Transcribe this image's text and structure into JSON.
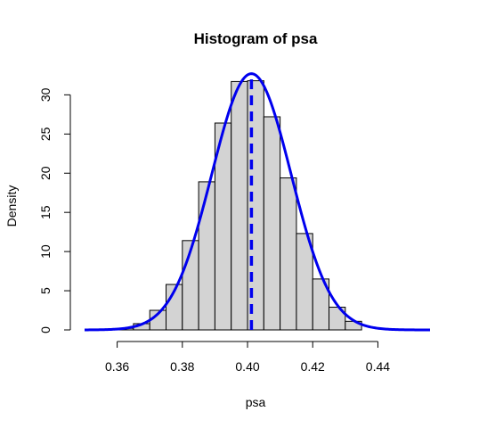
{
  "chart_data": {
    "type": "histogram",
    "title": "Histogram of psa",
    "xlabel": "psa",
    "ylabel": "Density",
    "xlim": [
      0.35,
      0.456
    ],
    "ylim": [
      0,
      33
    ],
    "x_ticks": [
      "0.36",
      "0.38",
      "0.40",
      "0.42",
      "0.44"
    ],
    "x_tick_values": [
      0.36,
      0.38,
      0.4,
      0.42,
      0.44
    ],
    "y_ticks": [
      "0",
      "5",
      "10",
      "15",
      "20",
      "25",
      "30"
    ],
    "y_tick_values": [
      0,
      5,
      10,
      15,
      20,
      25,
      30
    ],
    "bins": [
      {
        "x0": 0.36,
        "x1": 0.365,
        "density": 0.2
      },
      {
        "x0": 0.365,
        "x1": 0.37,
        "density": 0.8
      },
      {
        "x0": 0.37,
        "x1": 0.375,
        "density": 2.5
      },
      {
        "x0": 0.375,
        "x1": 0.38,
        "density": 5.8
      },
      {
        "x0": 0.38,
        "x1": 0.385,
        "density": 11.4
      },
      {
        "x0": 0.385,
        "x1": 0.39,
        "density": 18.9
      },
      {
        "x0": 0.39,
        "x1": 0.395,
        "density": 26.4
      },
      {
        "x0": 0.395,
        "x1": 0.4,
        "density": 31.7
      },
      {
        "x0": 0.4,
        "x1": 0.405,
        "density": 31.8
      },
      {
        "x0": 0.405,
        "x1": 0.41,
        "density": 27.2
      },
      {
        "x0": 0.41,
        "x1": 0.415,
        "density": 19.4
      },
      {
        "x0": 0.415,
        "x1": 0.42,
        "density": 12.3
      },
      {
        "x0": 0.42,
        "x1": 0.425,
        "density": 6.5
      },
      {
        "x0": 0.425,
        "x1": 0.43,
        "density": 2.9
      },
      {
        "x0": 0.43,
        "x1": 0.435,
        "density": 1.1
      }
    ],
    "density_curve": {
      "type": "normal",
      "mean": 0.4012,
      "sd": 0.0122,
      "x_range": [
        0.35,
        0.456
      ]
    },
    "mean_line": {
      "x": 0.4012,
      "style": "dashed"
    },
    "grid": false,
    "colors": {
      "bar_fill": "#d3d3d3",
      "bar_stroke": "#000000",
      "curve": "#0000ee",
      "mean_line": "#0000ee"
    }
  }
}
